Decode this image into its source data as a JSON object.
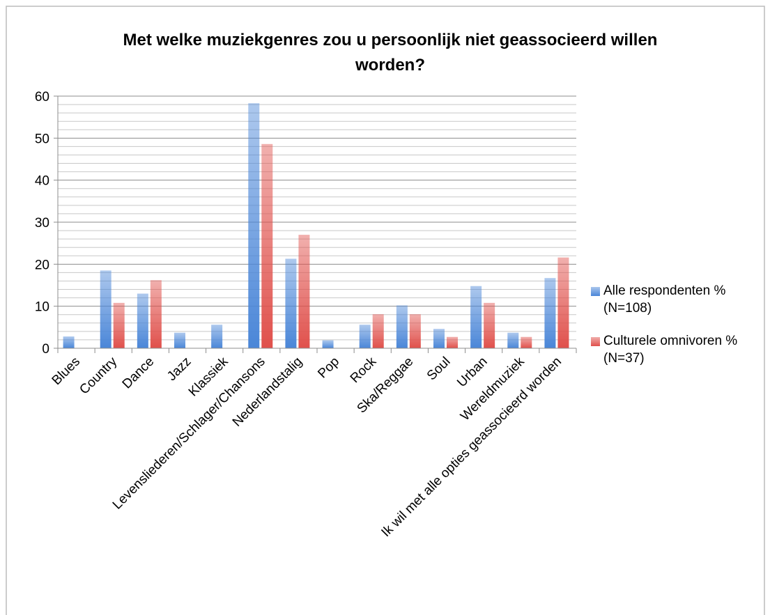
{
  "chart_data": {
    "type": "bar",
    "title": "Met welke muziekgenres zou u persoonlijk niet geassocieerd willen worden?",
    "categories": [
      "Blues",
      "Country",
      "Dance",
      "Jazz",
      "Klassiek",
      "Levensliederen/Schlager/Chansons",
      "Nederlandstalig",
      "Pop",
      "Rock",
      "Ska/Reggae",
      "Soul",
      "Urban",
      "Wereldmuziek",
      "Ik wil met alle opties geassocieerd worden"
    ],
    "series": [
      {
        "name": "Alle respondenten % (N=108)",
        "color": "#4a86d8",
        "values": [
          2.8,
          18.5,
          13.0,
          3.7,
          5.6,
          58.3,
          21.3,
          1.9,
          5.6,
          10.2,
          4.6,
          14.8,
          3.7,
          16.7
        ]
      },
      {
        "name": "Culturele omnivoren % (N=37)",
        "color": "#e0504b",
        "values": [
          0,
          10.8,
          16.2,
          0,
          0,
          48.6,
          27.0,
          0,
          8.1,
          8.1,
          2.7,
          10.8,
          2.7,
          21.6
        ]
      }
    ],
    "ylim": [
      0,
      60
    ],
    "yticks": [
      0,
      10,
      20,
      30,
      40,
      50,
      60
    ],
    "minor_yticks": [
      2,
      4,
      6,
      8,
      12,
      14,
      16,
      18,
      22,
      24,
      26,
      28,
      32,
      34,
      36,
      38,
      42,
      44,
      46,
      48,
      52,
      54,
      56,
      58
    ],
    "grid": true,
    "legend": "right"
  }
}
